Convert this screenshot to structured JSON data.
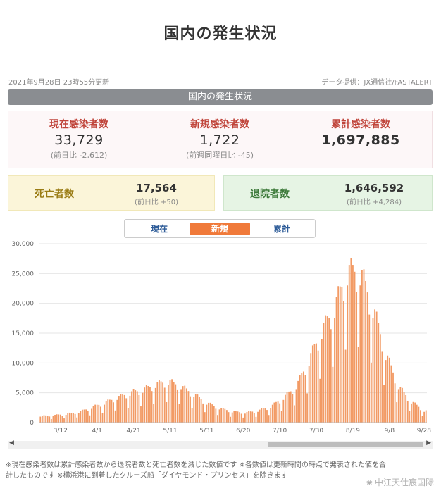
{
  "header": {
    "title": "国内の発生状況"
  },
  "meta": {
    "updated": "2021年9月28日 23時55分更新",
    "source": "データ提供：JX通信社/FASTALERT"
  },
  "section_bar": {
    "label": "国内の発生状況"
  },
  "stats": {
    "current": {
      "label": "現在感染者数",
      "value": "33,729",
      "diff": "(前日比 -2,612)"
    },
    "new": {
      "label": "新規感染者数",
      "value": "1,722",
      "diff": "(前週同曜日比 -45)"
    },
    "total": {
      "label": "累計感染者数",
      "value": "1,697,885"
    }
  },
  "deaths": {
    "label": "死亡者数",
    "value": "17,564",
    "diff": "(前日比 +50)"
  },
  "recovered": {
    "label": "退院者数",
    "value": "1,646,592",
    "diff": "(前日比 +4,284)"
  },
  "tabs": [
    {
      "label": "現在",
      "active": false
    },
    {
      "label": "新規",
      "active": true
    },
    {
      "label": "累計",
      "active": false
    }
  ],
  "footnote": {
    "line1": "※現在感染者数は累計感染者数から退院者数と死亡者数を減じた数値です ※各数値は更新時間の時点で発表された値を合",
    "line2": "計したものです ※横浜港に到着したクルーズ船「ダイヤモンド・プリンセス」を除きます"
  },
  "watermark": {
    "text": "中江天仕宸国际"
  },
  "colors": {
    "accent_orange": "#f07a3a",
    "bar": "#f29a64",
    "red_label": "#c0443a",
    "tab_blue": "#2f5d99"
  },
  "chart_data": {
    "type": "bar",
    "ylim": [
      0,
      30000
    ],
    "yticks": [
      0,
      5000,
      10000,
      15000,
      20000,
      25000,
      30000
    ],
    "ytick_labels": [
      "0",
      "5,000",
      "10,000",
      "15,000",
      "20,000",
      "25,000",
      "30,000"
    ],
    "xtick_labels": [
      "3/12",
      "4/1",
      "4/21",
      "5/11",
      "5/31",
      "6/20",
      "7/10",
      "7/30",
      "8/19",
      "9/8",
      "9/28"
    ],
    "x_start": "2021-03-01",
    "x_end": "2021-09-28",
    "weekly_profile": [
      [
        "2021-03-01",
        1000
      ],
      [
        "2021-03-08",
        1100
      ],
      [
        "2021-03-15",
        1300
      ],
      [
        "2021-03-22",
        1600
      ],
      [
        "2021-03-29",
        2300
      ],
      [
        "2021-04-05",
        3000
      ],
      [
        "2021-04-12",
        3800
      ],
      [
        "2021-04-19",
        4500
      ],
      [
        "2021-04-26",
        5000
      ],
      [
        "2021-05-03",
        5800
      ],
      [
        "2021-05-10",
        6300
      ],
      [
        "2021-05-17",
        5500
      ],
      [
        "2021-05-24",
        4300
      ],
      [
        "2021-05-31",
        3000
      ],
      [
        "2021-06-07",
        2200
      ],
      [
        "2021-06-14",
        1700
      ],
      [
        "2021-06-21",
        1500
      ],
      [
        "2021-06-28",
        1800
      ],
      [
        "2021-07-05",
        2400
      ],
      [
        "2021-07-12",
        3800
      ],
      [
        "2021-07-19",
        5500
      ],
      [
        "2021-07-26",
        9500
      ],
      [
        "2021-08-02",
        14000
      ],
      [
        "2021-08-09",
        17500
      ],
      [
        "2021-08-16",
        23000
      ],
      [
        "2021-08-23",
        23000
      ],
      [
        "2021-08-30",
        17500
      ],
      [
        "2021-09-06",
        10500
      ],
      [
        "2021-09-13",
        5500
      ],
      [
        "2021-09-20",
        3200
      ],
      [
        "2021-09-27",
        1800
      ]
    ],
    "weekday_factors": [
      0.55,
      1.0,
      1.15,
      1.2,
      1.15,
      1.1,
      0.95
    ]
  }
}
